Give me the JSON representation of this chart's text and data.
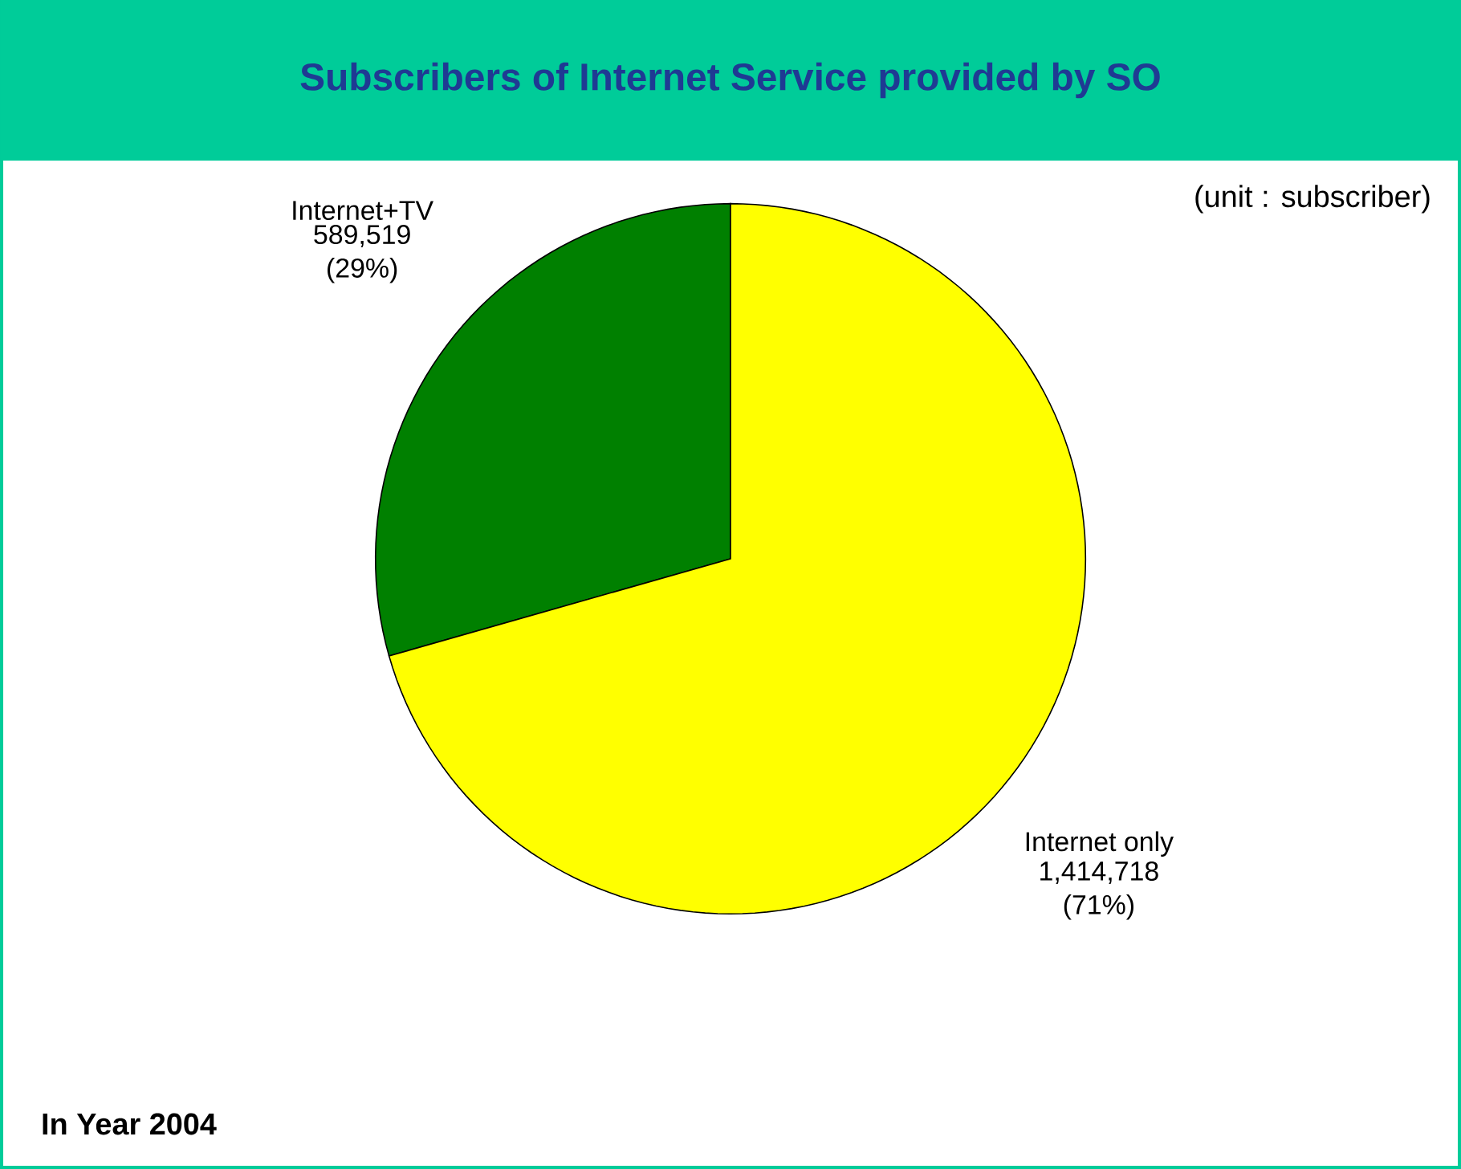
{
  "chart_data": {
    "type": "pie",
    "title": "Subscribers of Internet Service provided by SO",
    "subtitle": "(unit : subscriber)",
    "categories": [
      "Internet+TV",
      "Internet only"
    ],
    "values": [
      589519,
      1414718
    ],
    "value_labels": [
      "589,519 (29%)",
      "1,414,718 (71%)"
    ],
    "colors": [
      "#008000",
      "#ffff00"
    ],
    "annotations": [
      "In Year 2004"
    ]
  }
}
